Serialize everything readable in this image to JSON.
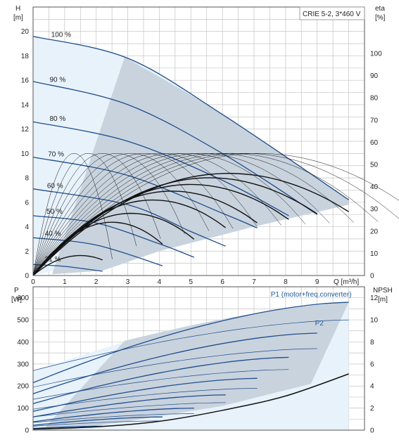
{
  "chart_data": [
    {
      "type": "line",
      "title": "CRIE 5-2, 3*460 V",
      "y_axis_left": {
        "label_top": "H",
        "label_unit": "[m]",
        "range": [
          0,
          22
        ],
        "ticks": [
          0,
          2,
          4,
          6,
          8,
          10,
          12,
          14,
          16,
          18,
          20
        ]
      },
      "y_axis_right": {
        "label_top": "eta",
        "label_unit": "[%]",
        "range": [
          0,
          100
        ],
        "ticks": [
          0,
          10,
          20,
          30,
          40,
          50,
          60,
          70,
          80,
          90,
          100
        ]
      },
      "x_axis": {
        "label": "Q [m³/h]",
        "range": [
          0,
          10.5
        ],
        "ticks": [
          0,
          1,
          2,
          3,
          4,
          5,
          6,
          7,
          8,
          9
        ]
      },
      "grid": true,
      "speed_labels": [
        {
          "text": "100 %",
          "q": 0.35,
          "h": 19.5
        },
        {
          "text": "90 %",
          "q": 0.3,
          "h": 15.8
        },
        {
          "text": "80 %",
          "q": 0.3,
          "h": 12.6
        },
        {
          "text": "70 %",
          "q": 0.25,
          "h": 9.7
        },
        {
          "text": "60 %",
          "q": 0.22,
          "h": 7.1
        },
        {
          "text": "50 %",
          "q": 0.2,
          "h": 5.0
        },
        {
          "text": "40 %",
          "q": 0.15,
          "h": 3.2
        },
        {
          "text": "21 %",
          "q": 0.15,
          "h": 1.1
        }
      ],
      "head_curves": [
        {
          "name": "100 %",
          "points": [
            [
              0,
              19.6
            ],
            [
              3,
              17.8
            ],
            [
              6,
              13.2
            ],
            [
              10,
              6.2
            ]
          ]
        },
        {
          "name": "90 %",
          "points": [
            [
              0,
              15.9
            ],
            [
              3,
              14.0
            ],
            [
              6,
              10.0
            ],
            [
              9,
              5.0
            ]
          ]
        },
        {
          "name": "80 %",
          "points": [
            [
              0,
              12.6
            ],
            [
              3,
              11.0
            ],
            [
              6,
              7.8
            ],
            [
              8.1,
              4.9
            ]
          ]
        },
        {
          "name": "70 %",
          "points": [
            [
              0,
              9.7
            ],
            [
              3,
              8.2
            ],
            [
              6,
              5.1
            ],
            [
              7.1,
              3.9
            ]
          ]
        },
        {
          "name": "60 %",
          "points": [
            [
              0,
              7.1
            ],
            [
              3,
              5.8
            ],
            [
              5,
              3.6
            ],
            [
              6.1,
              2.4
            ]
          ]
        },
        {
          "name": "50 %",
          "points": [
            [
              0,
              4.9
            ],
            [
              2,
              4.3
            ],
            [
              4,
              2.6
            ],
            [
              5.1,
              1.5
            ]
          ]
        },
        {
          "name": "40 %",
          "points": [
            [
              0,
              3.1
            ],
            [
              2,
              2.5
            ],
            [
              4.1,
              0.8
            ]
          ]
        },
        {
          "name": "21 %",
          "points": [
            [
              0,
              0.9
            ],
            [
              1,
              0.75
            ],
            [
              2.2,
              0.35
            ]
          ]
        }
      ],
      "efficiency_curves": [
        {
          "name": "100 %",
          "peak_q": 6.2,
          "peak_eta": 46,
          "end_q": 10.0
        },
        {
          "name": "90 %",
          "peak_q": 5.6,
          "peak_eta": 44,
          "end_q": 9.0
        },
        {
          "name": "80 %",
          "peak_q": 5.0,
          "peak_eta": 41,
          "end_q": 8.1
        },
        {
          "name": "70 %",
          "peak_q": 4.4,
          "peak_eta": 38,
          "end_q": 7.1
        },
        {
          "name": "60 %",
          "peak_q": 3.8,
          "peak_eta": 34,
          "end_q": 6.1
        },
        {
          "name": "50 %",
          "peak_q": 3.1,
          "peak_eta": 28,
          "end_q": 5.1
        },
        {
          "name": "40 %",
          "peak_q": 2.5,
          "peak_eta": 24,
          "end_q": 4.1
        },
        {
          "name": "21 %",
          "peak_q": 1.5,
          "peak_eta": 9,
          "end_q": 2.2
        }
      ]
    },
    {
      "type": "line",
      "y_axis_left": {
        "label_top": "P",
        "label_unit": "[W]",
        "range": [
          0,
          650
        ],
        "ticks": [
          0,
          100,
          200,
          300,
          400,
          500,
          600
        ]
      },
      "y_axis_right": {
        "label_top": "NPSH",
        "label_unit": "[m]",
        "range": [
          0,
          13
        ],
        "ticks": [
          0,
          2,
          4,
          6,
          8,
          10,
          12
        ]
      },
      "x_axis": {
        "range": [
          0,
          10.5
        ]
      },
      "grid": true,
      "series_labels": [
        {
          "text": "P1 (motor+freq.converter)",
          "q": 8.6,
          "p": 615
        },
        {
          "text": "P2",
          "q": 10.0,
          "p": 485
        }
      ],
      "p1_curves": [
        {
          "name": "100 %",
          "start": 215,
          "end": 580,
          "end_q": 10.0
        },
        {
          "name": "90 %",
          "start": 165,
          "end": 440,
          "end_q": 9.0
        },
        {
          "name": "80 %",
          "start": 120,
          "end": 330,
          "end_q": 8.1
        },
        {
          "name": "70 %",
          "start": 85,
          "end": 235,
          "end_q": 7.1
        },
        {
          "name": "60 %",
          "start": 60,
          "end": 160,
          "end_q": 6.1
        },
        {
          "name": "50 %",
          "start": 38,
          "end": 100,
          "end_q": 5.1
        },
        {
          "name": "40 %",
          "start": 22,
          "end": 60,
          "end_q": 4.1
        },
        {
          "name": "21 %",
          "start": 8,
          "end": 18,
          "end_q": 2.2
        }
      ],
      "p2_curves": [
        {
          "name": "100 %",
          "start": 270,
          "end": 500,
          "end_q": 10.0
        },
        {
          "name": "90 %",
          "start": 195,
          "end": 370,
          "end_q": 9.0
        },
        {
          "name": "80 %",
          "start": 140,
          "end": 275,
          "end_q": 8.1
        },
        {
          "name": "70 %",
          "start": 95,
          "end": 190,
          "end_q": 7.1
        },
        {
          "name": "60 %",
          "start": 60,
          "end": 125,
          "end_q": 6.1
        },
        {
          "name": "50 %",
          "start": 35,
          "end": 75,
          "end_q": 5.1
        },
        {
          "name": "40 %",
          "start": 18,
          "end": 42,
          "end_q": 4.1
        }
      ],
      "npsh_curve": {
        "name": "NPSH",
        "points": [
          [
            0,
            0.1
          ],
          [
            2,
            0.3
          ],
          [
            4,
            0.8
          ],
          [
            6,
            1.8
          ],
          [
            8,
            3.1
          ],
          [
            10,
            5.1
          ]
        ]
      }
    }
  ],
  "colors": {
    "blue_line": "#1f4e8c",
    "light_fill": "#e8f2fb",
    "grey_fill": "#c9d3de",
    "grid": "#c4c4c4",
    "black_line": "#111111",
    "label_blue": "#1f5d99"
  }
}
